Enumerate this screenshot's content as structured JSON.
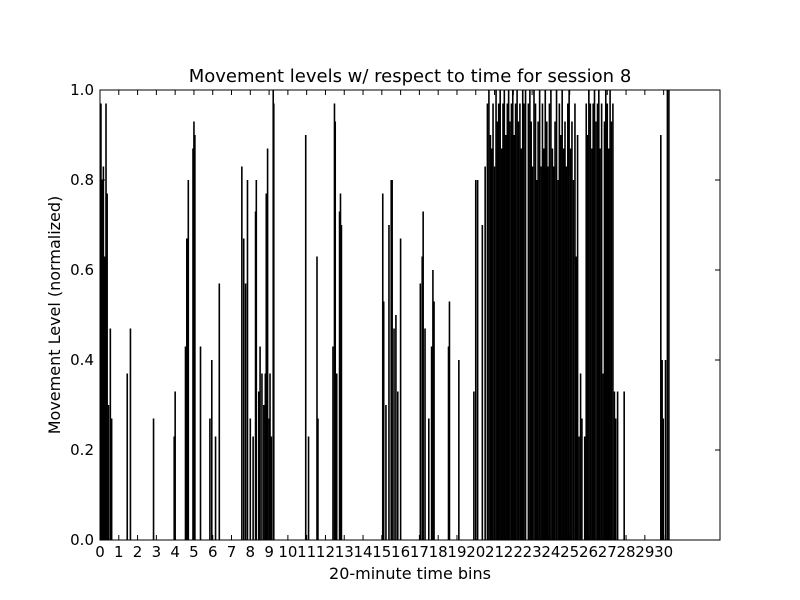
{
  "chart_data": {
    "type": "bar",
    "title": "Movement levels w/ respect to time for session 8",
    "xlabel": "20-minute time bins",
    "ylabel": "Movement Level (normalized)",
    "xlim": [
      0,
      33
    ],
    "ylim": [
      0.0,
      1.0
    ],
    "grid": false,
    "legend": "none",
    "bar_color": "#000000",
    "x_ticks": [
      {
        "value": 0,
        "label": "0"
      },
      {
        "value": 1,
        "label": "1"
      },
      {
        "value": 2,
        "label": "2"
      },
      {
        "value": 3,
        "label": "3"
      },
      {
        "value": 4,
        "label": "4"
      },
      {
        "value": 5,
        "label": "5"
      },
      {
        "value": 6,
        "label": "6"
      },
      {
        "value": 7,
        "label": "7"
      },
      {
        "value": 8,
        "label": "8"
      },
      {
        "value": 9,
        "label": "9"
      },
      {
        "value": 10,
        "label": "10"
      },
      {
        "value": 11,
        "label": "11"
      },
      {
        "value": 12,
        "label": "12"
      },
      {
        "value": 13,
        "label": "13"
      },
      {
        "value": 14,
        "label": "14"
      },
      {
        "value": 15,
        "label": "15"
      },
      {
        "value": 16,
        "label": "16"
      },
      {
        "value": 17,
        "label": "17"
      },
      {
        "value": 18,
        "label": "18"
      },
      {
        "value": 19,
        "label": "19"
      },
      {
        "value": 20,
        "label": "20"
      },
      {
        "value": 21,
        "label": "21"
      },
      {
        "value": 22,
        "label": "22"
      },
      {
        "value": 23,
        "label": "23"
      },
      {
        "value": 24,
        "label": "24"
      },
      {
        "value": 25,
        "label": "25"
      },
      {
        "value": 26,
        "label": "26"
      },
      {
        "value": 27,
        "label": "27"
      },
      {
        "value": 28,
        "label": "28"
      },
      {
        "value": 29,
        "label": "29"
      },
      {
        "value": 30,
        "label": "30"
      }
    ],
    "y_ticks": [
      {
        "value": 0.0,
        "label": "0.0"
      },
      {
        "value": 0.2,
        "label": "0.2"
      },
      {
        "value": 0.4,
        "label": "0.4"
      },
      {
        "value": 0.6,
        "label": "0.6"
      },
      {
        "value": 0.8,
        "label": "0.8"
      },
      {
        "value": 1.0,
        "label": "1.0"
      }
    ],
    "spikes": [
      {
        "x": 0.05,
        "y": 0.97
      },
      {
        "x": 0.12,
        "y": 0.8
      },
      {
        "x": 0.18,
        "y": 0.83
      },
      {
        "x": 0.25,
        "y": 0.63
      },
      {
        "x": 0.32,
        "y": 0.97
      },
      {
        "x": 0.38,
        "y": 0.77
      },
      {
        "x": 0.45,
        "y": 0.3
      },
      {
        "x": 0.55,
        "y": 0.47
      },
      {
        "x": 0.62,
        "y": 0.27
      },
      {
        "x": 1.45,
        "y": 0.37
      },
      {
        "x": 1.62,
        "y": 0.47
      },
      {
        "x": 2.85,
        "y": 0.27
      },
      {
        "x": 3.95,
        "y": 0.23
      },
      {
        "x": 4.0,
        "y": 0.33
      },
      {
        "x": 4.55,
        "y": 0.43
      },
      {
        "x": 4.62,
        "y": 0.67
      },
      {
        "x": 4.7,
        "y": 0.8
      },
      {
        "x": 4.95,
        "y": 0.87
      },
      {
        "x": 5.0,
        "y": 0.93
      },
      {
        "x": 5.05,
        "y": 0.9
      },
      {
        "x": 5.35,
        "y": 0.43
      },
      {
        "x": 5.85,
        "y": 0.27
      },
      {
        "x": 5.95,
        "y": 0.4
      },
      {
        "x": 6.15,
        "y": 0.23
      },
      {
        "x": 6.35,
        "y": 0.57
      },
      {
        "x": 7.55,
        "y": 0.83
      },
      {
        "x": 7.65,
        "y": 0.67
      },
      {
        "x": 7.75,
        "y": 0.57
      },
      {
        "x": 7.85,
        "y": 0.8
      },
      {
        "x": 8.0,
        "y": 0.27
      },
      {
        "x": 8.15,
        "y": 0.23
      },
      {
        "x": 8.28,
        "y": 0.73
      },
      {
        "x": 8.32,
        "y": 0.8
      },
      {
        "x": 8.45,
        "y": 0.33
      },
      {
        "x": 8.52,
        "y": 0.43
      },
      {
        "x": 8.62,
        "y": 0.37
      },
      {
        "x": 8.72,
        "y": 0.3
      },
      {
        "x": 8.8,
        "y": 0.37
      },
      {
        "x": 8.85,
        "y": 0.77
      },
      {
        "x": 8.92,
        "y": 0.87
      },
      {
        "x": 9.0,
        "y": 0.27
      },
      {
        "x": 9.05,
        "y": 0.37
      },
      {
        "x": 9.12,
        "y": 0.23
      },
      {
        "x": 9.22,
        "y": 1.0
      },
      {
        "x": 9.25,
        "y": 0.97
      },
      {
        "x": 10.95,
        "y": 0.9
      },
      {
        "x": 11.1,
        "y": 0.23
      },
      {
        "x": 11.55,
        "y": 0.63
      },
      {
        "x": 11.6,
        "y": 0.27
      },
      {
        "x": 12.4,
        "y": 0.43
      },
      {
        "x": 12.48,
        "y": 0.97
      },
      {
        "x": 12.52,
        "y": 0.93
      },
      {
        "x": 12.6,
        "y": 0.37
      },
      {
        "x": 12.75,
        "y": 0.73
      },
      {
        "x": 12.8,
        "y": 0.77
      },
      {
        "x": 12.85,
        "y": 0.7
      },
      {
        "x": 15.05,
        "y": 0.77
      },
      {
        "x": 15.1,
        "y": 0.53
      },
      {
        "x": 15.22,
        "y": 0.3
      },
      {
        "x": 15.38,
        "y": 0.7
      },
      {
        "x": 15.5,
        "y": 0.8
      },
      {
        "x": 15.55,
        "y": 0.8
      },
      {
        "x": 15.65,
        "y": 0.47
      },
      {
        "x": 15.75,
        "y": 0.5
      },
      {
        "x": 15.85,
        "y": 0.33
      },
      {
        "x": 16.0,
        "y": 0.67
      },
      {
        "x": 17.05,
        "y": 0.57
      },
      {
        "x": 17.15,
        "y": 0.63
      },
      {
        "x": 17.2,
        "y": 0.73
      },
      {
        "x": 17.3,
        "y": 0.47
      },
      {
        "x": 17.5,
        "y": 0.27
      },
      {
        "x": 17.65,
        "y": 0.43
      },
      {
        "x": 17.72,
        "y": 0.6
      },
      {
        "x": 17.78,
        "y": 0.53
      },
      {
        "x": 18.55,
        "y": 0.43
      },
      {
        "x": 18.6,
        "y": 0.53
      },
      {
        "x": 19.1,
        "y": 0.4
      },
      {
        "x": 19.9,
        "y": 0.33
      },
      {
        "x": 20.0,
        "y": 0.8
      },
      {
        "x": 20.1,
        "y": 0.8
      },
      {
        "x": 20.35,
        "y": 0.7
      },
      {
        "x": 20.5,
        "y": 0.83
      },
      {
        "x": 20.62,
        "y": 0.97
      },
      {
        "x": 20.7,
        "y": 1.0
      },
      {
        "x": 20.78,
        "y": 0.9
      },
      {
        "x": 20.85,
        "y": 0.87
      },
      {
        "x": 20.92,
        "y": 0.97
      },
      {
        "x": 21.0,
        "y": 0.83
      },
      {
        "x": 21.08,
        "y": 1.0
      },
      {
        "x": 21.15,
        "y": 0.93
      },
      {
        "x": 21.22,
        "y": 0.97
      },
      {
        "x": 21.3,
        "y": 1.0
      },
      {
        "x": 21.38,
        "y": 0.87
      },
      {
        "x": 21.45,
        "y": 0.97
      },
      {
        "x": 21.52,
        "y": 1.0
      },
      {
        "x": 21.6,
        "y": 0.9
      },
      {
        "x": 21.68,
        "y": 0.97
      },
      {
        "x": 21.75,
        "y": 1.0
      },
      {
        "x": 21.82,
        "y": 0.93
      },
      {
        "x": 21.9,
        "y": 0.97
      },
      {
        "x": 21.97,
        "y": 1.0
      },
      {
        "x": 22.05,
        "y": 0.9
      },
      {
        "x": 22.12,
        "y": 0.97
      },
      {
        "x": 22.2,
        "y": 1.0
      },
      {
        "x": 22.27,
        "y": 0.93
      },
      {
        "x": 22.35,
        "y": 0.97
      },
      {
        "x": 22.42,
        "y": 0.87
      },
      {
        "x": 22.5,
        "y": 1.0
      },
      {
        "x": 22.57,
        "y": 0.97
      },
      {
        "x": 22.65,
        "y": 1.0
      },
      {
        "x": 22.8,
        "y": 0.97
      },
      {
        "x": 22.88,
        "y": 1.0
      },
      {
        "x": 22.95,
        "y": 0.93
      },
      {
        "x": 23.02,
        "y": 0.83
      },
      {
        "x": 23.1,
        "y": 1.0
      },
      {
        "x": 23.18,
        "y": 0.97
      },
      {
        "x": 23.25,
        "y": 0.8
      },
      {
        "x": 23.32,
        "y": 0.93
      },
      {
        "x": 23.4,
        "y": 1.0
      },
      {
        "x": 23.48,
        "y": 0.83
      },
      {
        "x": 23.55,
        "y": 0.97
      },
      {
        "x": 23.62,
        "y": 0.87
      },
      {
        "x": 23.7,
        "y": 1.0
      },
      {
        "x": 23.78,
        "y": 0.93
      },
      {
        "x": 23.85,
        "y": 0.83
      },
      {
        "x": 23.92,
        "y": 0.97
      },
      {
        "x": 24.0,
        "y": 1.0
      },
      {
        "x": 24.08,
        "y": 0.87
      },
      {
        "x": 24.15,
        "y": 0.83
      },
      {
        "x": 24.22,
        "y": 0.93
      },
      {
        "x": 24.3,
        "y": 1.0
      },
      {
        "x": 24.38,
        "y": 0.8
      },
      {
        "x": 24.45,
        "y": 0.97
      },
      {
        "x": 24.52,
        "y": 0.9
      },
      {
        "x": 24.6,
        "y": 1.0
      },
      {
        "x": 24.68,
        "y": 0.87
      },
      {
        "x": 24.75,
        "y": 0.93
      },
      {
        "x": 24.82,
        "y": 0.83
      },
      {
        "x": 24.9,
        "y": 0.97
      },
      {
        "x": 24.97,
        "y": 1.0
      },
      {
        "x": 25.05,
        "y": 0.87
      },
      {
        "x": 25.12,
        "y": 0.93
      },
      {
        "x": 25.2,
        "y": 0.8
      },
      {
        "x": 25.28,
        "y": 0.97
      },
      {
        "x": 25.35,
        "y": 0.63
      },
      {
        "x": 25.42,
        "y": 0.9
      },
      {
        "x": 25.5,
        "y": 0.23
      },
      {
        "x": 25.58,
        "y": 0.37
      },
      {
        "x": 25.65,
        "y": 0.27
      },
      {
        "x": 25.8,
        "y": 0.23
      },
      {
        "x": 25.88,
        "y": 0.97
      },
      {
        "x": 25.95,
        "y": 0.9
      },
      {
        "x": 26.02,
        "y": 1.0
      },
      {
        "x": 26.1,
        "y": 0.97
      },
      {
        "x": 26.18,
        "y": 0.87
      },
      {
        "x": 26.25,
        "y": 0.97
      },
      {
        "x": 26.32,
        "y": 1.0
      },
      {
        "x": 26.4,
        "y": 0.93
      },
      {
        "x": 26.48,
        "y": 0.97
      },
      {
        "x": 26.55,
        "y": 1.0
      },
      {
        "x": 26.62,
        "y": 0.87
      },
      {
        "x": 26.7,
        "y": 0.97
      },
      {
        "x": 26.78,
        "y": 0.37
      },
      {
        "x": 26.85,
        "y": 0.93
      },
      {
        "x": 26.92,
        "y": 1.0
      },
      {
        "x": 27.0,
        "y": 0.97
      },
      {
        "x": 27.08,
        "y": 0.87
      },
      {
        "x": 27.15,
        "y": 1.0
      },
      {
        "x": 27.22,
        "y": 0.93
      },
      {
        "x": 27.3,
        "y": 0.97
      },
      {
        "x": 27.38,
        "y": 0.33
      },
      {
        "x": 27.45,
        "y": 0.27
      },
      {
        "x": 27.55,
        "y": 0.33
      },
      {
        "x": 27.9,
        "y": 0.33
      },
      {
        "x": 29.85,
        "y": 0.9
      },
      {
        "x": 29.92,
        "y": 0.4
      },
      {
        "x": 29.98,
        "y": 0.27
      },
      {
        "x": 30.1,
        "y": 0.4
      },
      {
        "x": 30.2,
        "y": 1.0
      },
      {
        "x": 30.28,
        "y": 1.0
      }
    ]
  }
}
